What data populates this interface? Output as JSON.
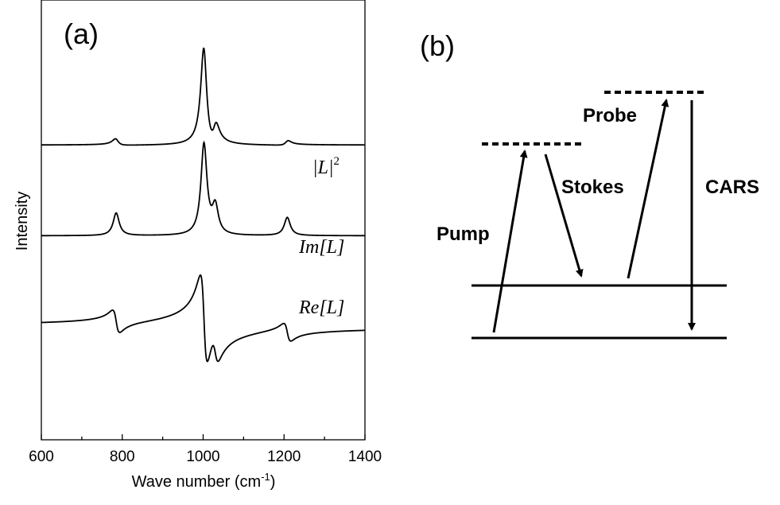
{
  "panel_a_label": "(a)",
  "panel_b_label": "(b)",
  "chart_data": {
    "type": "line",
    "title": "",
    "xlabel": "Wave number (cm-1)",
    "xlabel_parts": {
      "main": "Wave number (cm",
      "sup": "-1",
      "close": ")"
    },
    "ylabel": "Intensity",
    "xlim": [
      600,
      1400
    ],
    "ylim": [
      -1.25,
      3.6
    ],
    "x_ticks": [
      600,
      800,
      1000,
      1200,
      1400
    ],
    "x_tick_labels": [
      "600",
      "800",
      "1000",
      "1200",
      "1400"
    ],
    "y_ticks_shown": false,
    "peaks": [
      {
        "center": 785,
        "width": 9,
        "amplitude": 0.25
      },
      {
        "center": 1002,
        "width": 9,
        "amplitude": 1.0
      },
      {
        "center": 1030,
        "width": 9,
        "amplitude": 0.3
      },
      {
        "center": 1208,
        "width": 9,
        "amplitude": 0.2
      }
    ],
    "series": [
      {
        "name": "|L|²",
        "label_parts": {
          "text": "|L|",
          "sup": "2"
        },
        "component": "abs2",
        "offset": 2.0,
        "scale": 1.0
      },
      {
        "name": "Im[L]",
        "label_parts": {
          "fn": "Im",
          "arg": "[L]"
        },
        "component": "imag",
        "offset": 1.0,
        "scale": 1.0
      },
      {
        "name": "Re[L]",
        "label_parts": {
          "fn": "Re",
          "arg": "[L]"
        },
        "component": "real",
        "offset": 0.0,
        "scale": 1.0
      }
    ]
  },
  "diagram": {
    "labels": {
      "probe": "Probe",
      "stokes": "Stokes",
      "cars": "CARS",
      "pump": "Pump"
    }
  }
}
